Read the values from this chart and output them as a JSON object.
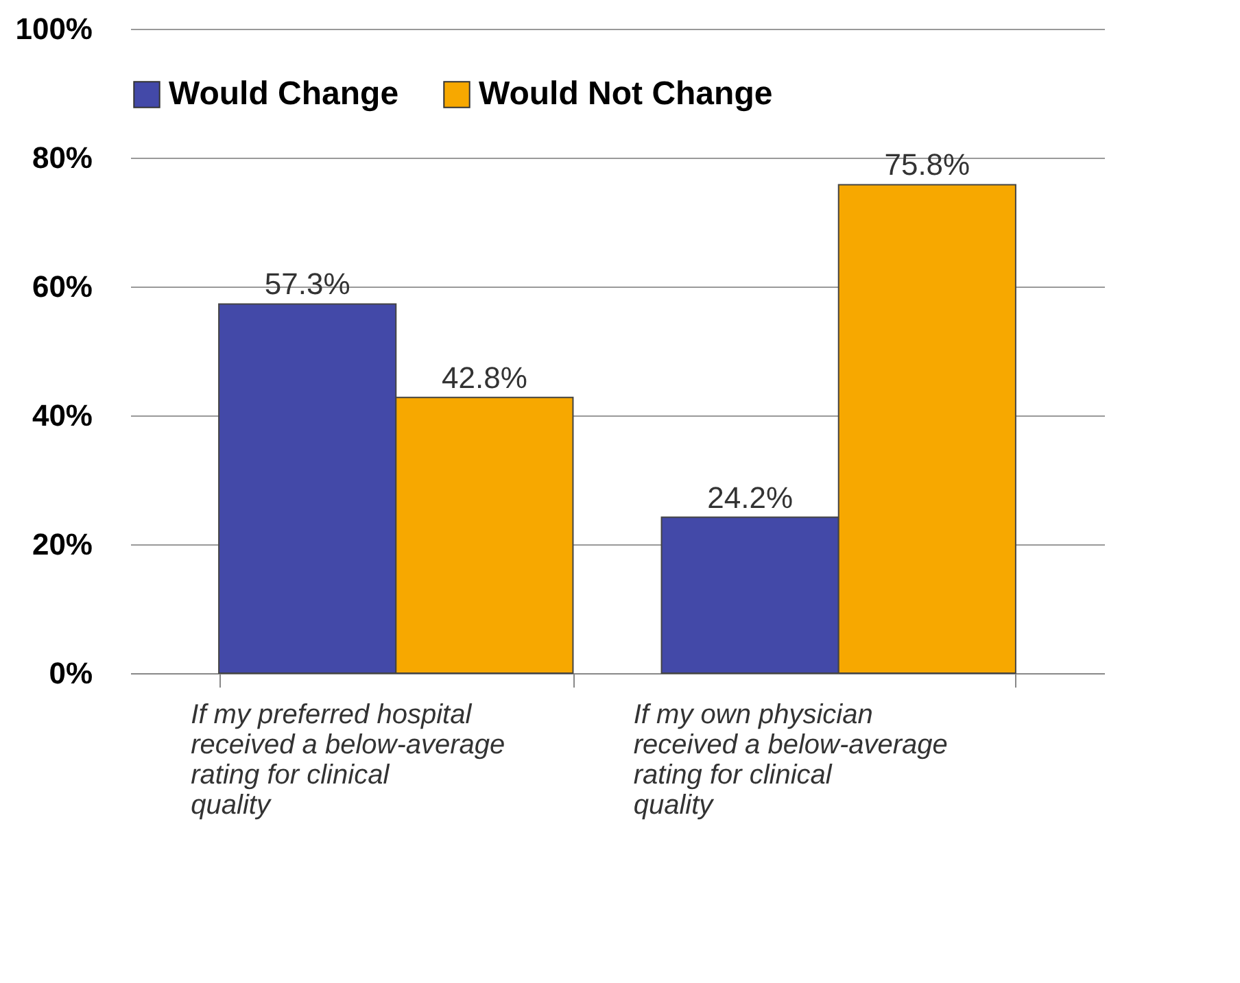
{
  "chart_data": {
    "type": "bar",
    "categories": [
      "If my preferred hospital received a below-average rating for clinical quality",
      "If my own physician received a below-average rating for clinical quality"
    ],
    "series": [
      {
        "name": "Would Change",
        "color": "#4349a8",
        "values": [
          57.3,
          24.2
        ]
      },
      {
        "name": "Would Not Change",
        "color": "#f7a800",
        "values": [
          42.8,
          75.8
        ]
      }
    ],
    "ylim": [
      0,
      100
    ],
    "yticks": [
      {
        "value": 0,
        "label": "0%"
      },
      {
        "value": 20,
        "label": "20%"
      },
      {
        "value": 40,
        "label": "40%"
      },
      {
        "value": 60,
        "label": "60%"
      },
      {
        "value": 80,
        "label": "80%"
      },
      {
        "value": 100,
        "label": "100%"
      }
    ],
    "value_labels": [
      "57.3%",
      "24.2%",
      "42.8%",
      "75.8%"
    ],
    "grid": "y",
    "legend": "top"
  }
}
